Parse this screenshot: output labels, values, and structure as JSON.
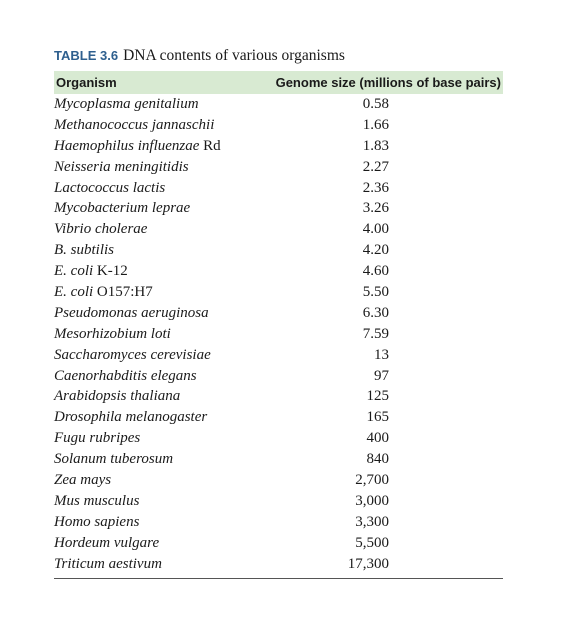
{
  "table": {
    "label": "TABLE 3.6",
    "title": "DNA contents of various organisms",
    "header": {
      "organism": "Organism",
      "genome_size": "Genome size (millions of base pairs)"
    },
    "rows": [
      {
        "italic": "Mycoplasma genitalium",
        "plain": "",
        "size": "0.58"
      },
      {
        "italic": "Methanococcus jannaschii",
        "plain": "",
        "size": "1.66"
      },
      {
        "italic": "Haemophilus influenzae",
        "plain": " Rd",
        "size": "1.83"
      },
      {
        "italic": "Neisseria meningitidis",
        "plain": "",
        "size": "2.27"
      },
      {
        "italic": "Lactococcus lactis",
        "plain": "",
        "size": "2.36"
      },
      {
        "italic": "Mycobacterium leprae",
        "plain": "",
        "size": "3.26"
      },
      {
        "italic": "Vibrio cholerae",
        "plain": "",
        "size": "4.00"
      },
      {
        "italic": "B. subtilis",
        "plain": "",
        "size": "4.20"
      },
      {
        "italic": "E. coli",
        "plain": " K-12",
        "size": "4.60"
      },
      {
        "italic": "E. coli",
        "plain": " O157:H7",
        "size": "5.50"
      },
      {
        "italic": "Pseudomonas aeruginosa",
        "plain": "",
        "size": "6.30"
      },
      {
        "italic": "Mesorhizobium loti",
        "plain": "",
        "size": "7.59"
      },
      {
        "italic": "Saccharomyces cerevisiae",
        "plain": "",
        "size": "13"
      },
      {
        "italic": "Caenorhabditis elegans",
        "plain": "",
        "size": "97"
      },
      {
        "italic": "Arabidopsis thaliana",
        "plain": "",
        "size": "125"
      },
      {
        "italic": "Drosophila melanogaster",
        "plain": "",
        "size": "165"
      },
      {
        "italic": "Fugu rubripes",
        "plain": "",
        "size": "400"
      },
      {
        "italic": "Solanum tuberosum",
        "plain": "",
        "size": "840"
      },
      {
        "italic": "Zea mays",
        "plain": "",
        "size": "2,700"
      },
      {
        "italic": "Mus musculus",
        "plain": "",
        "size": "3,000"
      },
      {
        "italic": "Homo sapiens",
        "plain": "",
        "size": "3,300"
      },
      {
        "italic": "Hordeum vulgare",
        "plain": "",
        "size": "5,500"
      },
      {
        "italic": "Triticum aestivum",
        "plain": "",
        "size": "17,300"
      }
    ]
  },
  "colors": {
    "caption_label": "#2e5f8e",
    "header_background": "#d8ead2",
    "text": "#1a1a1a"
  }
}
